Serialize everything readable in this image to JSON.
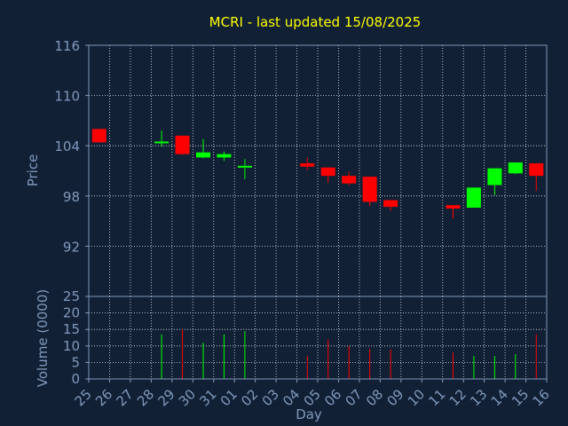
{
  "colors": {
    "background": "#112035",
    "axis": "#7f99bb",
    "grid": "#e6e6e6",
    "title": "#ffff00",
    "up": "#00ff00",
    "down": "#ff0000"
  },
  "chart_data": {
    "type": "candlestick",
    "title": "MCRI - last updated 15/08/2025",
    "xlabel": "Day",
    "x_ticks": [
      "25",
      "26",
      "27",
      "28",
      "29",
      "30",
      "31",
      "01",
      "02",
      "03",
      "04",
      "05",
      "06",
      "07",
      "08",
      "09",
      "10",
      "11",
      "12",
      "13",
      "14",
      "15",
      "16"
    ],
    "grid": true,
    "price_panel": {
      "ylabel": "Price",
      "ylim": [
        86,
        116
      ],
      "y_ticks": [
        116,
        110,
        104,
        98,
        92
      ],
      "candles": [
        {
          "day": "25",
          "open": 106.0,
          "high": 106.0,
          "low": 104.4,
          "close": 104.4
        },
        {
          "day": "28",
          "open": 104.3,
          "high": 105.8,
          "low": 103.9,
          "close": 104.5
        },
        {
          "day": "29",
          "open": 105.2,
          "high": 105.2,
          "low": 102.9,
          "close": 103.0
        },
        {
          "day": "30",
          "open": 102.6,
          "high": 104.8,
          "low": 102.5,
          "close": 103.2
        },
        {
          "day": "31",
          "open": 102.6,
          "high": 103.3,
          "low": 102.2,
          "close": 103.0
        },
        {
          "day": "01",
          "open": 101.5,
          "high": 102.4,
          "low": 100.0,
          "close": 101.6
        },
        {
          "day": "04",
          "open": 101.9,
          "high": 102.6,
          "low": 101.1,
          "close": 101.5
        },
        {
          "day": "05",
          "open": 101.4,
          "high": 101.4,
          "low": 99.6,
          "close": 100.4
        },
        {
          "day": "06",
          "open": 100.4,
          "high": 100.9,
          "low": 99.3,
          "close": 99.5
        },
        {
          "day": "07",
          "open": 100.3,
          "high": 100.3,
          "low": 96.8,
          "close": 97.3
        },
        {
          "day": "08",
          "open": 97.5,
          "high": 97.5,
          "low": 96.2,
          "close": 96.7
        },
        {
          "day": "11",
          "open": 96.9,
          "high": 96.9,
          "low": 95.3,
          "close": 96.5
        },
        {
          "day": "12",
          "open": 96.6,
          "high": 99.0,
          "low": 96.6,
          "close": 99.0
        },
        {
          "day": "13",
          "open": 99.3,
          "high": 101.3,
          "low": 98.1,
          "close": 101.3
        },
        {
          "day": "14",
          "open": 100.7,
          "high": 102.0,
          "low": 100.6,
          "close": 102.0
        },
        {
          "day": "15",
          "open": 101.9,
          "high": 101.9,
          "low": 98.6,
          "close": 100.4
        }
      ]
    },
    "volume_panel": {
      "ylabel": "Volume (0000)",
      "ylim": [
        0,
        25
      ],
      "y_ticks": [
        25,
        20,
        15,
        10,
        5,
        0
      ],
      "bars": [
        {
          "day": "28",
          "value": 13.5,
          "dir": "up"
        },
        {
          "day": "29",
          "value": 15.0,
          "dir": "down"
        },
        {
          "day": "30",
          "value": 11.0,
          "dir": "up"
        },
        {
          "day": "31",
          "value": 13.5,
          "dir": "up"
        },
        {
          "day": "01",
          "value": 14.5,
          "dir": "up"
        },
        {
          "day": "04",
          "value": 7.0,
          "dir": "down"
        },
        {
          "day": "05",
          "value": 12.0,
          "dir": "down"
        },
        {
          "day": "06",
          "value": 10.0,
          "dir": "down"
        },
        {
          "day": "07",
          "value": 9.0,
          "dir": "down"
        },
        {
          "day": "08",
          "value": 9.0,
          "dir": "down"
        },
        {
          "day": "11",
          "value": 8.0,
          "dir": "down"
        },
        {
          "day": "12",
          "value": 7.0,
          "dir": "up"
        },
        {
          "day": "13",
          "value": 7.0,
          "dir": "up"
        },
        {
          "day": "14",
          "value": 7.5,
          "dir": "up"
        },
        {
          "day": "15",
          "value": 13.5,
          "dir": "down"
        }
      ]
    }
  }
}
